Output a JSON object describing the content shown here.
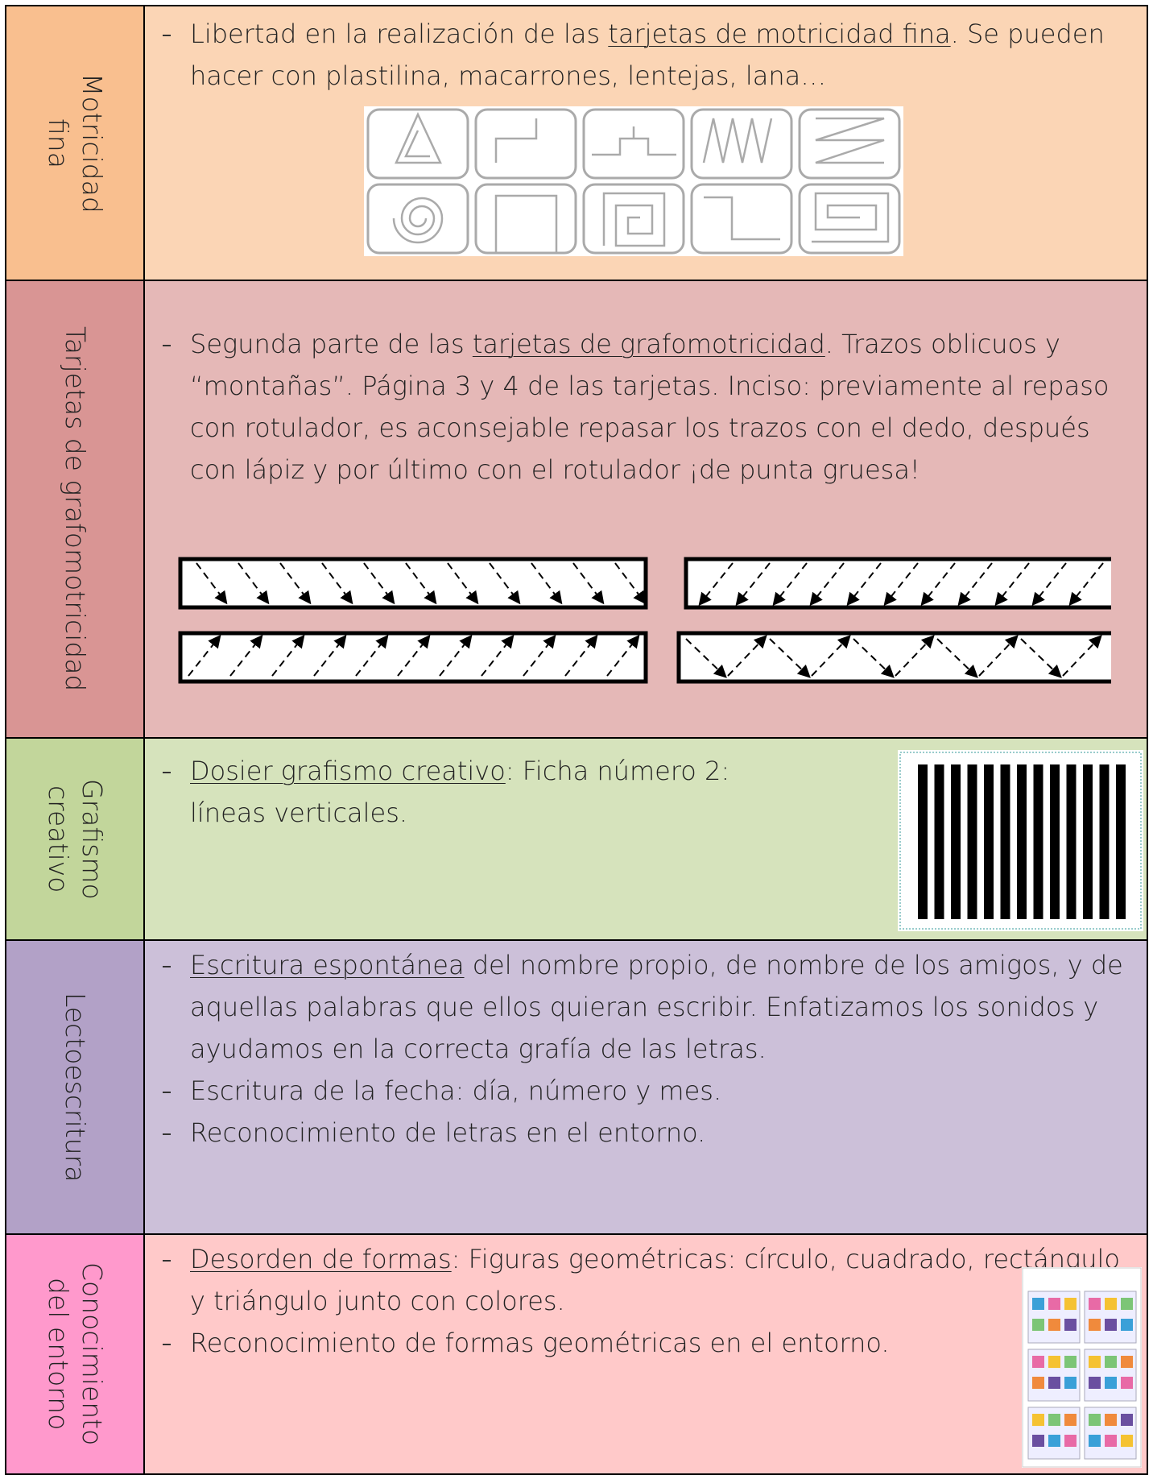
{
  "rows": [
    {
      "label": [
        "Motricidad",
        "fina"
      ],
      "items": [
        [
          {
            "text": "Libertad en la realización de las ",
            "underline": false
          },
          {
            "text": "tarjetas de motricidad fina",
            "underline": true
          },
          {
            "text": ". Se pueden hacer con plastilina, macarrones, lentejas, lana…",
            "underline": false
          }
        ]
      ]
    },
    {
      "label": [
        "Tarjetas de grafomotricidad"
      ],
      "items": [
        [
          {
            "text": "Segunda parte de las ",
            "underline": false
          },
          {
            "text": "tarjetas de grafomotricidad",
            "underline": true
          },
          {
            "text": ". Trazos oblicuos y “montañas”. Página 3 y 4 de las tarjetas. Inciso: previamente al repaso con rotulador, es aconsejable repasar los trazos con el dedo, después con lápiz y por último con el rotulador ¡de punta gruesa!",
            "underline": false
          }
        ]
      ]
    },
    {
      "label": [
        "Grafismo",
        "creativo"
      ],
      "items": [
        [
          {
            "text": "Dosier grafismo creativo",
            "underline": true
          },
          {
            "text": ": Ficha número 2: líneas verticales.",
            "underline": false
          }
        ]
      ]
    },
    {
      "label": [
        "Lectoescritura"
      ],
      "items": [
        [
          {
            "text": "Escritura espontánea",
            "underline": true
          },
          {
            "text": " del nombre propio, de nombre de los amigos, y de aquellas palabras que ellos quieran escribir. Enfatizamos los sonidos y ayudamos en la correcta grafía de las letras.",
            "underline": false
          }
        ],
        [
          {
            "text": "Escritura de la fecha: día, número y mes.",
            "underline": false
          }
        ],
        [
          {
            "text": "Reconocimiento de letras en el entorno.",
            "underline": false
          }
        ]
      ]
    },
    {
      "label": [
        "Conocimiento",
        "del entorno"
      ],
      "items": [
        [
          {
            "text": "Desorden de formas",
            "underline": true
          },
          {
            "text": ": Figuras geométricas: círculo, cuadrado, rectángulo y triángulo junto con colores.",
            "underline": false
          }
        ],
        [
          {
            "text": "Reconocimiento de formas geométricas en el entorno.",
            "underline": false
          }
        ]
      ]
    }
  ]
}
